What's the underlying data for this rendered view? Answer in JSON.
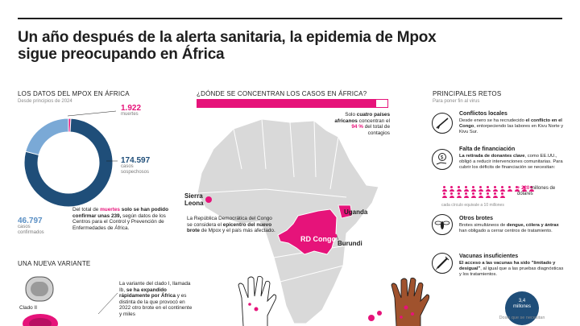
{
  "title": "Un año después de la alerta sanitaria, la epidemia de Mpox sigue preocupando en África",
  "datos": {
    "heading": "LOS DATOS DEL MPOX EN ÁFRICA",
    "since": "Desde principios de 2024",
    "muertes_num": "1.922",
    "muertes_lbl": "muertes",
    "sospechosos_num": "174.597",
    "sospechosos_lbl": "casos sospechosos",
    "confirmados_num": "46.797",
    "confirmados_lbl": "casos confirmados",
    "note_pre": "Del total de ",
    "note_muertes": "muertes",
    "note_post": " solo se han podido confirmar unas 239,",
    "note_rest": "según datos de los Centros para el Control y Prevención de Enfermedades de África."
  },
  "chart_data": {
    "type": "pie",
    "title": "LOS DATOS DEL MPOX EN ÁFRICA",
    "categories": [
      "muertes",
      "casos sospechosos",
      "casos confirmados"
    ],
    "values": [
      1922,
      174597,
      46797
    ],
    "colors": [
      "#e6137a",
      "#1f4e79",
      "#7aa9d6"
    ]
  },
  "mapa": {
    "heading": "¿DÓNDE SE CONCENTRAN LOS CASOS EN ÁFRICA?",
    "callout_a": "Solo ",
    "callout_b": "cuatro países africanos",
    "callout_c": " concentran el ",
    "callout_pct": "94 %",
    "callout_d": " del total de contagios",
    "pct_value": 94,
    "sierra_leona": "Sierra Leona",
    "uganda": "Uganda",
    "rd_congo": "RD Congo",
    "burundi": "Burundi",
    "rdc_note_a": "La República Democrática del Congo se considera el ",
    "rdc_note_b": "epicentro del nuevo brote",
    "rdc_note_c": " de Mpox y el país más afectado."
  },
  "variante": {
    "heading": "UNA NUEVA VARIANTE",
    "clado": "Clado II",
    "text_a": "La variante del clado I, llamada Ib, ",
    "text_b": "se ha expandido rápidamente por África",
    "text_c": " y es distinta de la que provocó en 2022 otro brote en el continente y miles"
  },
  "retos": {
    "heading": "PRINCIPALES RETOS",
    "sub": "Para poner fin al virus",
    "items": [
      {
        "title": "Conflictos locales",
        "desc_a": "Desde enero se ha recrudecido ",
        "desc_b": "el conflicto en el Congo",
        "desc_c": ", entorpeciendo las labores en Kivu Norte y Kivu Sur."
      },
      {
        "title": "Falta de financiación",
        "desc_a": "",
        "desc_b": "La retirada de donantes clave",
        "desc_c": ", como EE.UU., obligó a reducir intervenciones comunitarias. Para cubrir los déficits de financiación se necesitan:"
      },
      {
        "title": "Otros brotes",
        "desc_a": "Brotes simultáneos de ",
        "desc_b": "dengue, cólera y ántrax",
        "desc_c": " han obligado a cerrar centros de tratamiento."
      },
      {
        "title": "Vacunas insuficientes",
        "desc_a": "",
        "desc_b": "El acceso a las vacunas ha sido \"limitado y desigual\"",
        "desc_c": ", al igual que a las pruebas diagnósticas y los tratamientos."
      }
    ],
    "money_num": "+ 220",
    "money_unit": "millones de dólares",
    "money_note": "cada círculo equivale a 10 millones",
    "vac_num": "3,4",
    "vac_unit": "millones",
    "vac_note": "Dosis que se necesitan"
  },
  "icons": [
    "rifle-icon",
    "money-hand-icon",
    "mosquito-icon",
    "syringe-icon",
    "virus-icon",
    "hand-icon"
  ]
}
